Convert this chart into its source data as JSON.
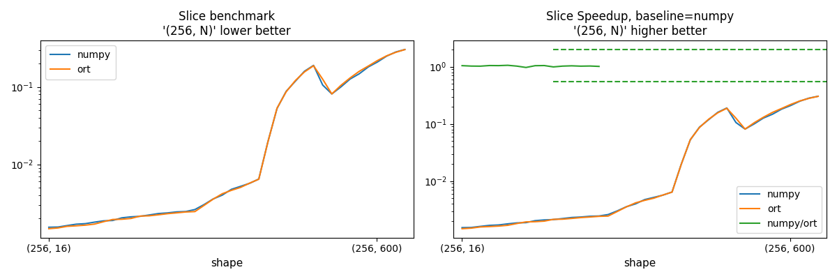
{
  "title1": "Slice benchmark\n'(256, N)' lower better",
  "title2": "Slice Speedup, baseline=numpy\n'(256, N)' higher better",
  "xlabel": "shape",
  "x_tick_labels": [
    "(256, 16)",
    "(256, 600)"
  ],
  "numpy_color": "#1f77b4",
  "ort_color": "#ff7f0e",
  "green_color": "#2ca02c",
  "dashed_upper": 2.0,
  "dashed_lower": 0.55,
  "x_tick_positions": [
    16,
    600
  ]
}
